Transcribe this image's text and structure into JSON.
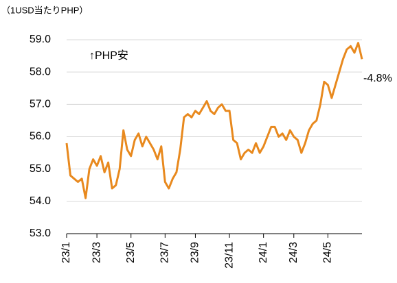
{
  "chart_data": {
    "type": "line",
    "unit_label": "（1USD当たりPHP）",
    "annotations": [
      "↑PHP安",
      "-4.8%"
    ],
    "categories": [
      "23/1",
      null,
      null,
      null,
      null,
      null,
      null,
      null,
      "23/3",
      null,
      null,
      null,
      null,
      null,
      null,
      null,
      null,
      "23/5",
      null,
      null,
      null,
      null,
      null,
      null,
      null,
      null,
      "23/7",
      null,
      null,
      null,
      null,
      null,
      null,
      null,
      "23/9",
      null,
      null,
      null,
      null,
      null,
      null,
      null,
      null,
      "23/11",
      null,
      null,
      null,
      null,
      null,
      null,
      null,
      null,
      "24/1",
      null,
      null,
      null,
      null,
      null,
      null,
      null,
      "24/3",
      null,
      null,
      null,
      null,
      null,
      null,
      null,
      null,
      "24/5",
      null,
      null,
      null,
      null,
      null,
      null,
      null,
      null,
      null
    ],
    "series": [
      {
        "name": "USD/PHP",
        "color": "#e8891e",
        "values": [
          55.8,
          54.8,
          54.7,
          54.6,
          54.7,
          54.1,
          55.0,
          55.3,
          55.1,
          55.4,
          54.9,
          55.2,
          54.4,
          54.5,
          55.0,
          56.2,
          55.6,
          55.4,
          55.9,
          56.1,
          55.7,
          56.0,
          55.8,
          55.6,
          55.3,
          55.7,
          54.6,
          54.4,
          54.7,
          54.9,
          55.6,
          56.6,
          56.7,
          56.6,
          56.8,
          56.7,
          56.9,
          57.1,
          56.8,
          56.7,
          56.9,
          57.0,
          56.8,
          56.8,
          55.9,
          55.8,
          55.3,
          55.5,
          55.6,
          55.5,
          55.8,
          55.5,
          55.7,
          56.0,
          56.3,
          56.3,
          56.0,
          56.1,
          55.9,
          56.2,
          56.0,
          55.9,
          55.5,
          55.8,
          56.2,
          56.4,
          56.5,
          57.0,
          57.7,
          57.6,
          57.2,
          57.6,
          58.0,
          58.4,
          58.7,
          58.8,
          58.6,
          58.9,
          58.4
        ]
      }
    ],
    "ylim": [
      53,
      59
    ],
    "yticks": [
      {
        "value": 53,
        "label": "53.0"
      },
      {
        "value": 54,
        "label": "54.0"
      },
      {
        "value": 55,
        "label": "55.0"
      },
      {
        "value": 56,
        "label": "56.0"
      },
      {
        "value": 57,
        "label": "57.0"
      },
      {
        "value": 58,
        "label": "58.0"
      },
      {
        "value": 59,
        "label": "59.0"
      }
    ],
    "grid": true
  }
}
